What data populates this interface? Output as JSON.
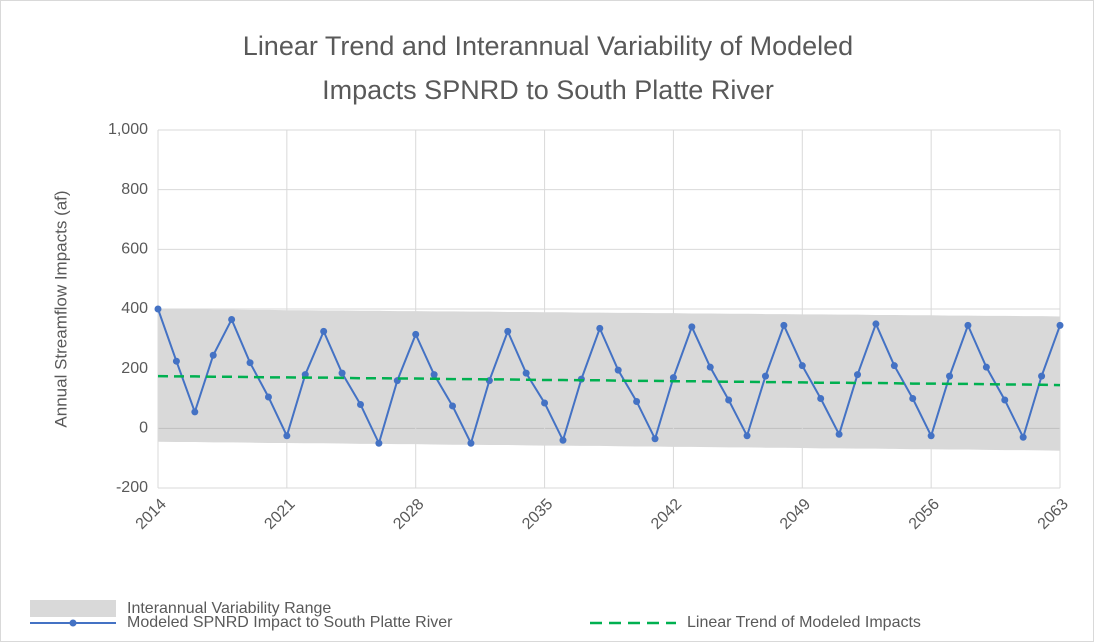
{
  "chart_data": {
    "type": "line",
    "title": [
      "Linear Trend and Interannual Variability of Modeled",
      "Impacts SPNRD to South Platte River"
    ],
    "y_label": "Annual Streamflow Impacts (af)",
    "x": [
      2014,
      2015,
      2016,
      2017,
      2018,
      2019,
      2020,
      2021,
      2022,
      2023,
      2024,
      2025,
      2026,
      2027,
      2028,
      2029,
      2030,
      2031,
      2032,
      2033,
      2034,
      2035,
      2036,
      2037,
      2038,
      2039,
      2040,
      2041,
      2042,
      2043,
      2044,
      2045,
      2046,
      2047,
      2048,
      2049,
      2050,
      2051,
      2052,
      2053,
      2054,
      2055,
      2056,
      2057,
      2058,
      2059,
      2060,
      2061,
      2062,
      2063
    ],
    "band": {
      "name": "Interannual Variability Range",
      "color": "#d9d9d9",
      "upper": [
        400,
        399,
        399,
        398,
        398,
        397,
        397,
        396,
        396,
        395,
        395,
        394,
        394,
        393,
        393,
        392,
        392,
        391,
        391,
        390,
        390,
        389,
        389,
        388,
        388,
        387,
        387,
        386,
        386,
        385,
        385,
        384,
        384,
        383,
        383,
        382,
        382,
        381,
        381,
        380,
        380,
        379,
        379,
        378,
        378,
        377,
        377,
        376,
        376,
        375
      ],
      "lower": [
        -45,
        -46,
        -46,
        -47,
        -47,
        -48,
        -49,
        -49,
        -50,
        -50,
        -51,
        -52,
        -52,
        -53,
        -53,
        -54,
        -55,
        -55,
        -56,
        -56,
        -57,
        -58,
        -58,
        -59,
        -59,
        -60,
        -61,
        -61,
        -62,
        -62,
        -63,
        -64,
        -64,
        -65,
        -65,
        -66,
        -67,
        -67,
        -68,
        -68,
        -69,
        -70,
        -70,
        -71,
        -71,
        -72,
        -73,
        -73,
        -74,
        -75
      ]
    },
    "series": [
      {
        "name": "Modeled SPNRD Impact to South Platte River",
        "color": "#4472c4",
        "style": "solid",
        "markers": true,
        "values": [
          400,
          225,
          55,
          245,
          365,
          220,
          105,
          -25,
          180,
          325,
          185,
          80,
          -50,
          160,
          315,
          180,
          75,
          -50,
          160,
          325,
          185,
          85,
          -40,
          165,
          335,
          195,
          90,
          -35,
          170,
          340,
          205,
          95,
          -25,
          175,
          345,
          210,
          100,
          -20,
          180,
          350,
          210,
          100,
          -25,
          175,
          345,
          205,
          95,
          -30,
          175,
          345
        ]
      },
      {
        "name": "Linear Trend of Modeled Impacts",
        "color": "#00b050",
        "style": "dashed",
        "markers": false,
        "values": [
          175,
          174,
          174,
          173,
          173,
          172,
          171,
          171,
          170,
          170,
          169,
          168,
          168,
          167,
          167,
          166,
          165,
          165,
          164,
          164,
          163,
          162,
          162,
          161,
          161,
          160,
          159,
          159,
          158,
          158,
          157,
          156,
          156,
          155,
          155,
          154,
          153,
          153,
          152,
          152,
          151,
          150,
          150,
          149,
          149,
          148,
          147,
          147,
          146,
          145
        ]
      }
    ],
    "xlim": [
      2014,
      2063
    ],
    "xticks": [
      2014,
      2021,
      2028,
      2035,
      2042,
      2049,
      2056,
      2063
    ],
    "ylim": [
      -200,
      1000
    ],
    "yticks": [
      -200,
      0,
      200,
      400,
      600,
      800,
      {
        "value": 1000,
        "label": "1,000"
      }
    ],
    "grid": true
  }
}
